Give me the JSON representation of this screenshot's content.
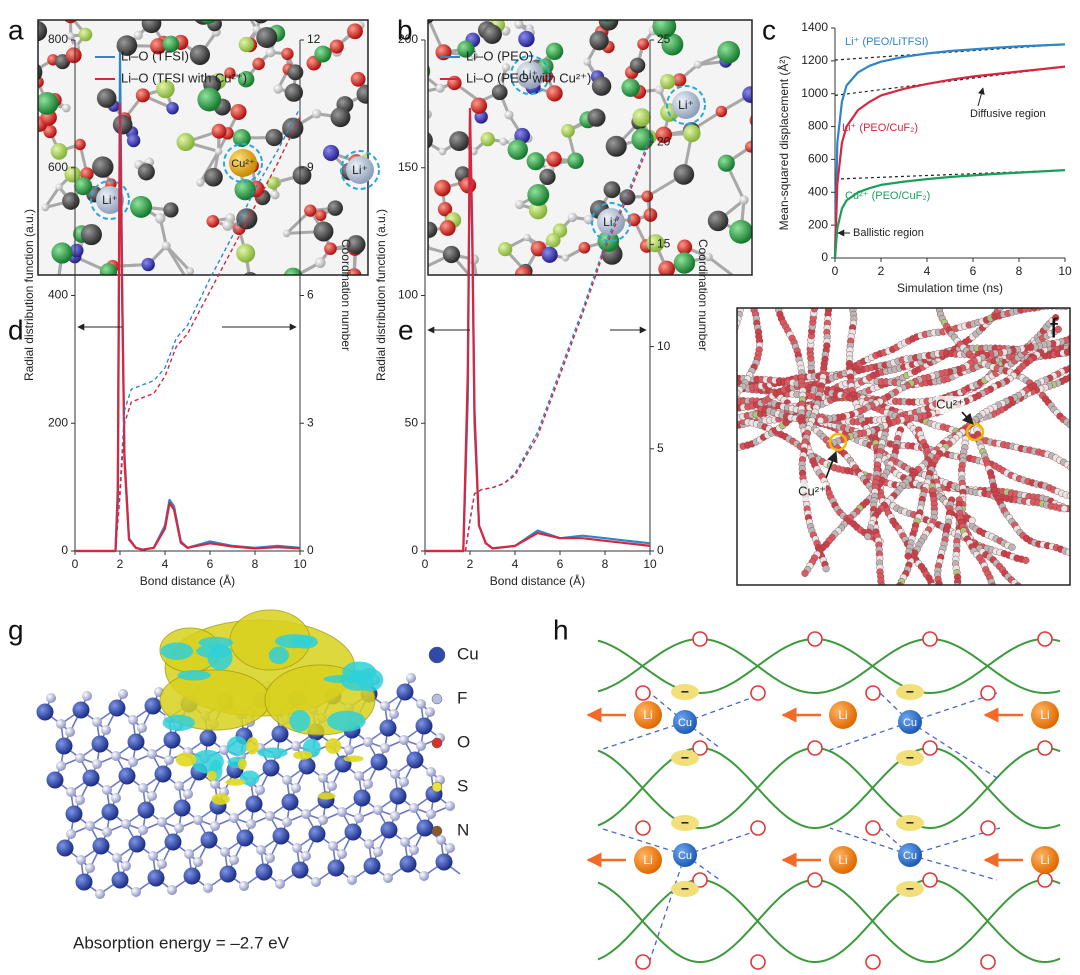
{
  "panel_labels": [
    "a",
    "b",
    "c",
    "d",
    "e",
    "f",
    "g",
    "h"
  ],
  "panel_a": {
    "ions": [
      "Cu²⁺",
      "Li⁺",
      "Li⁺"
    ]
  },
  "panel_b": {
    "ions": [
      "Li⁺",
      "Li⁺",
      "Li⁺"
    ]
  },
  "chart_data": [
    {
      "type": "line",
      "xlabel": "Simulation time (ns)",
      "ylabel": "Mean-squared displacement (Å²)",
      "xlim": [
        0,
        10
      ],
      "xticks": [
        0,
        2,
        4,
        6,
        8,
        10
      ],
      "ylim": [
        0,
        1400
      ],
      "yticks": [
        0,
        200,
        400,
        600,
        800,
        1000,
        1200,
        1400
      ],
      "x": [
        0,
        0.1,
        0.3,
        0.5,
        1,
        1.5,
        2,
        3,
        4,
        5,
        6,
        7,
        8,
        9,
        10
      ],
      "series": [
        {
          "name": "Li⁺ (PEO/LiTFSI)",
          "color": "#2e86c8",
          "values": [
            0,
            700,
            950,
            1050,
            1130,
            1170,
            1195,
            1225,
            1245,
            1260,
            1270,
            1280,
            1288,
            1294,
            1300
          ]
        },
        {
          "name": "Li⁺ (PEO/CuF₂)",
          "color": "#d7263d",
          "values": [
            0,
            450,
            700,
            800,
            900,
            950,
            990,
            1030,
            1060,
            1085,
            1105,
            1120,
            1135,
            1150,
            1165
          ]
        },
        {
          "name": "Cu²⁺ (PEO/CuF₂)",
          "color": "#1a9e5a",
          "values": [
            0,
            180,
            300,
            350,
            400,
            425,
            445,
            465,
            480,
            493,
            503,
            512,
            520,
            527,
            535
          ]
        }
      ],
      "fits": [
        {
          "x": [
            0,
            10
          ],
          "values": [
            1205,
            1300
          ]
        },
        {
          "x": [
            0,
            10
          ],
          "values": [
            990,
            1165
          ]
        },
        {
          "x": [
            0,
            10
          ],
          "values": [
            480,
            535
          ]
        }
      ],
      "annotations": [
        "Diffusive region",
        "Ballistic region"
      ]
    },
    {
      "type": "line",
      "xlabel": "Bond distance (Å)",
      "ylabel": "Radial distribution function (a.u.)",
      "y2label": "Coordination number",
      "xlim": [
        0,
        10
      ],
      "xticks": [
        0,
        2,
        4,
        6,
        8,
        10
      ],
      "ylim": [
        0,
        800
      ],
      "yticks": [
        0,
        200,
        400,
        600,
        800
      ],
      "y2lim": [
        0,
        12
      ],
      "y2ticks": [
        0,
        3,
        6,
        9,
        12
      ],
      "legend": "upper left",
      "series": [
        {
          "name": "Li–O (TFSI)",
          "color": "#2e86c8",
          "x": [
            0,
            1,
            1.8,
            1.9,
            2.0,
            2.1,
            2.2,
            2.4,
            2.7,
            3,
            3.5,
            4,
            4.2,
            4.4,
            4.7,
            5,
            6,
            7,
            8,
            9,
            10
          ],
          "values": [
            0,
            0,
            0,
            100,
            780,
            400,
            150,
            20,
            5,
            2,
            5,
            40,
            80,
            70,
            15,
            5,
            15,
            8,
            5,
            8,
            5
          ]
        },
        {
          "name": "Li–O (TFSI with Cu²⁺)",
          "color": "#d7263d",
          "x": [
            0,
            1,
            1.8,
            1.9,
            2.0,
            2.1,
            2.2,
            2.4,
            2.7,
            3,
            3.5,
            4,
            4.2,
            4.4,
            4.7,
            5,
            6,
            7,
            8,
            9,
            10
          ],
          "values": [
            0,
            0,
            0,
            80,
            700,
            380,
            140,
            18,
            5,
            2,
            5,
            35,
            75,
            65,
            13,
            5,
            12,
            7,
            4,
            6,
            4
          ]
        },
        {
          "color": "#2e86c8",
          "axis": "y2",
          "dash": true,
          "x": [
            1.8,
            2.0,
            2.2,
            2.5,
            3,
            3.5,
            4,
            4.5,
            5,
            6,
            7,
            8,
            9,
            10
          ],
          "values": [
            0,
            1.5,
            3.3,
            3.8,
            3.9,
            4.0,
            4.3,
            5.0,
            5.3,
            6.4,
            7.4,
            8.5,
            9.4,
            10.4
          ]
        },
        {
          "color": "#d7263d",
          "axis": "y2",
          "dash": true,
          "x": [
            1.8,
            2.0,
            2.2,
            2.5,
            3,
            3.5,
            4,
            4.5,
            5,
            6,
            7,
            8,
            9,
            10
          ],
          "values": [
            0,
            1.3,
            3.0,
            3.5,
            3.6,
            3.7,
            4.1,
            4.8,
            5.1,
            6.1,
            7.1,
            8.1,
            9.1,
            10.2
          ]
        }
      ]
    },
    {
      "type": "line",
      "xlabel": "Bond distance (Å)",
      "ylabel": "Radial distribution function (a.u.)",
      "y2label": "Coordination number",
      "xlim": [
        0,
        10
      ],
      "xticks": [
        0,
        2,
        4,
        6,
        8,
        10
      ],
      "ylim": [
        0,
        200
      ],
      "yticks": [
        0,
        50,
        100,
        150,
        200
      ],
      "y2lim": [
        0,
        25
      ],
      "y2ticks": [
        0,
        5,
        10,
        15,
        20,
        25
      ],
      "legend": "upper left",
      "series": [
        {
          "name": "Li–O (PEO)",
          "color": "#2e86c8",
          "x": [
            0,
            1.7,
            1.9,
            2.0,
            2.1,
            2.2,
            2.4,
            2.7,
            3,
            4,
            5,
            6,
            7,
            8,
            9,
            10
          ],
          "values": [
            0,
            0,
            60,
            170,
            120,
            50,
            10,
            3,
            1,
            2,
            8,
            5,
            6,
            5,
            4,
            3
          ]
        },
        {
          "name": "Li–O (PEO with Cu²⁺)",
          "color": "#d7263d",
          "x": [
            0,
            1.7,
            1.9,
            2.0,
            2.1,
            2.2,
            2.4,
            2.7,
            3,
            4,
            5,
            6,
            7,
            8,
            9,
            10
          ],
          "values": [
            0,
            0,
            70,
            173,
            125,
            55,
            10,
            3,
            1,
            2,
            7,
            5,
            5,
            4,
            3,
            2
          ]
        },
        {
          "color": "#2e86c8",
          "axis": "y2",
          "dash": true,
          "x": [
            1.8,
            2.0,
            2.2,
            2.5,
            3,
            3.5,
            4,
            5,
            6,
            7,
            8,
            9,
            10
          ],
          "values": [
            0,
            1.5,
            2.8,
            3.0,
            3.1,
            3.3,
            3.8,
            5.8,
            8.8,
            11.8,
            15.0,
            17.5,
            20.2
          ]
        },
        {
          "color": "#d7263d",
          "axis": "y2",
          "dash": true,
          "x": [
            1.8,
            2.0,
            2.2,
            2.5,
            3,
            3.5,
            4,
            5,
            6,
            7,
            8,
            9,
            10
          ],
          "values": [
            0,
            1.5,
            2.8,
            3.0,
            3.1,
            3.3,
            3.7,
            5.6,
            8.6,
            11.6,
            14.8,
            17.3,
            20.0
          ]
        }
      ]
    }
  ],
  "panel_f": {
    "annotations": [
      "Cu²⁺",
      "Cu²⁺"
    ]
  },
  "panel_g": {
    "legend": [
      "Cu",
      "F",
      "O",
      "S",
      "N"
    ],
    "legend_colors": [
      "#2f4aa8",
      "#b8bde0",
      "#d9302c",
      "#e8e23a",
      "#8a5a2b"
    ],
    "caption": "Absorption energy = –2.7 eV"
  },
  "panel_h": {
    "li_labels": [
      "Li",
      "Li",
      "Li",
      "Li",
      "Li",
      "Li"
    ],
    "cu_labels": [
      "Cu",
      "Cu",
      "Cu",
      "Cu"
    ],
    "charge_labels": [
      "−",
      "−",
      "−",
      "−",
      "−",
      "−",
      "−",
      "−"
    ]
  }
}
